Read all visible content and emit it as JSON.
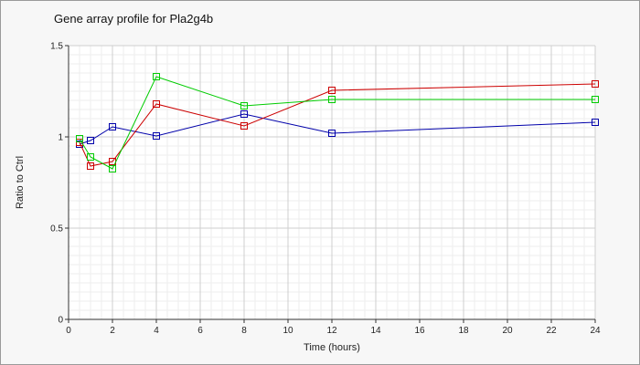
{
  "chart_data": {
    "type": "line",
    "title": "Gene array profile for Pla2g4b",
    "xlabel": "Time (hours)",
    "ylabel": "Ratio to Ctrl",
    "xlim": [
      0,
      24
    ],
    "ylim": [
      0,
      1.5
    ],
    "x_ticks": [
      "0",
      "2",
      "4",
      "6",
      "8",
      "10",
      "12",
      "14",
      "16",
      "18",
      "20",
      "22",
      "24"
    ],
    "y_ticks": [
      "0",
      "0.5",
      "1",
      "1.5"
    ],
    "grid": true,
    "legend": "none",
    "series": [
      {
        "color": "#0000aa",
        "x": [
          0.5,
          1,
          2,
          4,
          8,
          12,
          24
        ],
        "y": [
          0.96,
          0.98,
          1.055,
          1.005,
          1.125,
          1.02,
          1.08
        ]
      },
      {
        "color": "#cc0000",
        "x": [
          0.5,
          1,
          2,
          4,
          8,
          12,
          24
        ],
        "y": [
          0.97,
          0.84,
          0.865,
          1.18,
          1.06,
          1.255,
          1.29
        ]
      },
      {
        "color": "#00cc00",
        "x": [
          0.5,
          1,
          2,
          4,
          8,
          12,
          24
        ],
        "y": [
          0.99,
          0.89,
          0.825,
          1.33,
          1.17,
          1.205,
          1.205
        ]
      }
    ]
  }
}
